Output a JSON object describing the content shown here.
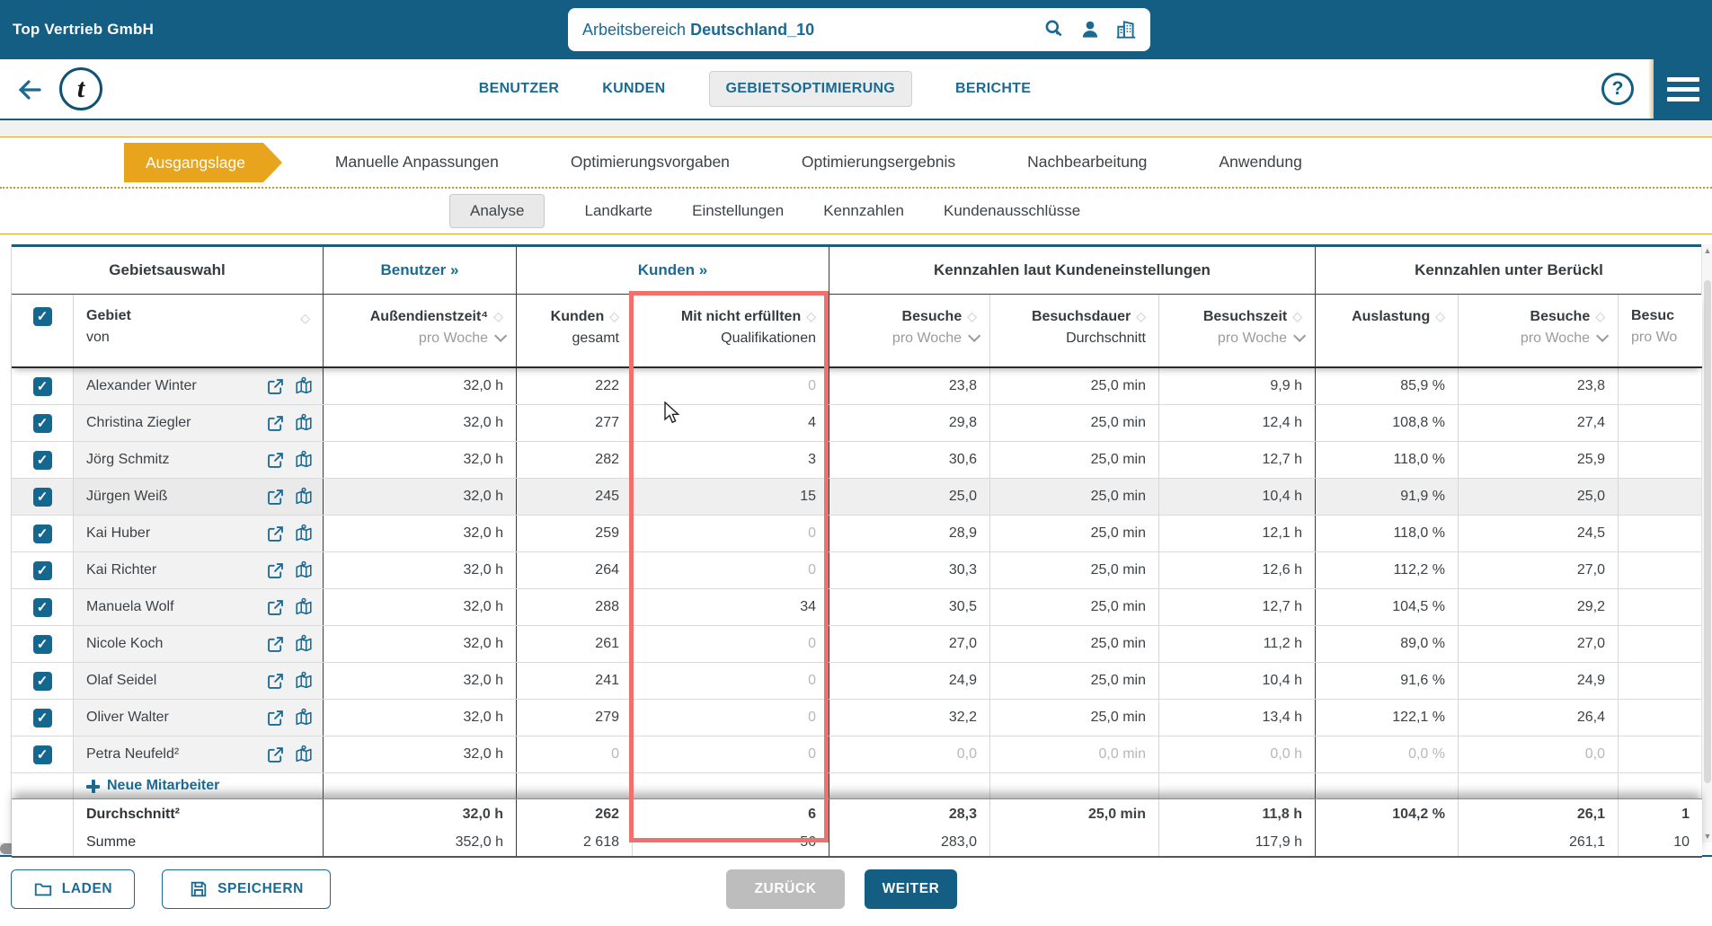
{
  "topbar": {
    "company": "Top Vertrieb GmbH",
    "workspace_label": "Arbeitsbereich",
    "workspace_name": "Deutschland_10",
    "icons": [
      "search-icon",
      "user-icon",
      "buildings-icon"
    ]
  },
  "nav": {
    "tabs": [
      {
        "label": "BENUTZER",
        "active": false
      },
      {
        "label": "KUNDEN",
        "active": false
      },
      {
        "label": "GEBIETSOPTIMIERUNG",
        "active": true
      },
      {
        "label": "BERICHTE",
        "active": false
      }
    ],
    "help_glyph": "?"
  },
  "wizard": {
    "steps": [
      {
        "label": "Ausgangslage",
        "active": true
      },
      {
        "label": "Manuelle Anpassungen",
        "active": false
      },
      {
        "label": "Optimierungsvorgaben",
        "active": false
      },
      {
        "label": "Optimierungsergebnis",
        "active": false
      },
      {
        "label": "Nachbearbeitung",
        "active": false
      },
      {
        "label": "Anwendung",
        "active": false
      }
    ]
  },
  "subtabs": [
    {
      "label": "Analyse",
      "active": true
    },
    {
      "label": "Landkarte",
      "active": false
    },
    {
      "label": "Einstellungen",
      "active": false
    },
    {
      "label": "Kennzahlen",
      "active": false
    },
    {
      "label": "Kundenausschlüsse",
      "active": false
    }
  ],
  "table": {
    "groups": [
      {
        "label": "Gebietsauswahl",
        "link": false
      },
      {
        "label": "Benutzer »",
        "link": true
      },
      {
        "label": "Kunden »",
        "link": true
      },
      {
        "label": "Kennzahlen laut Kundeneinstellungen",
        "link": false
      },
      {
        "label": "Kennzahlen unter Berückl",
        "link": false
      }
    ],
    "columns": [
      {
        "title": "Gebiet",
        "subtitle": "von"
      },
      {
        "title": "Außendienstzeit⁴",
        "subtitle": "pro Woche"
      },
      {
        "title": "Kunden",
        "subtitle": "gesamt"
      },
      {
        "title": "Mit nicht erfüllten",
        "subtitle": "Qualifikationen"
      },
      {
        "title": "Besuche",
        "subtitle": "pro Woche"
      },
      {
        "title": "Besuchsdauer",
        "subtitle": "Durchschnitt"
      },
      {
        "title": "Besuchszeit",
        "subtitle": "pro Woche"
      },
      {
        "title": "Auslastung",
        "subtitle": ""
      },
      {
        "title": "Besuche",
        "subtitle": "pro Woche"
      },
      {
        "title": "Besuc",
        "subtitle": "pro Wo"
      }
    ],
    "rows": [
      {
        "name": "Alexander Winter",
        "checked": true,
        "hover": false,
        "values": [
          "32,0 h",
          "222",
          "0",
          "23,8",
          "25,0 min",
          "9,9 h",
          "85,9 %",
          "23,8",
          ""
        ]
      },
      {
        "name": "Christina Ziegler",
        "checked": true,
        "hover": false,
        "values": [
          "32,0 h",
          "277",
          "4",
          "29,8",
          "25,0 min",
          "12,4 h",
          "108,8 %",
          "27,4",
          ""
        ]
      },
      {
        "name": "Jörg Schmitz",
        "checked": true,
        "hover": false,
        "values": [
          "32,0 h",
          "282",
          "3",
          "30,6",
          "25,0 min",
          "12,7 h",
          "118,0 %",
          "25,9",
          ""
        ]
      },
      {
        "name": "Jürgen Weiß",
        "checked": true,
        "hover": true,
        "values": [
          "32,0 h",
          "245",
          "15",
          "25,0",
          "25,0 min",
          "10,4 h",
          "91,9 %",
          "25,0",
          ""
        ]
      },
      {
        "name": "Kai Huber",
        "checked": true,
        "hover": false,
        "values": [
          "32,0 h",
          "259",
          "0",
          "28,9",
          "25,0 min",
          "12,1 h",
          "118,0 %",
          "24,5",
          ""
        ]
      },
      {
        "name": "Kai Richter",
        "checked": true,
        "hover": false,
        "values": [
          "32,0 h",
          "264",
          "0",
          "30,3",
          "25,0 min",
          "12,6 h",
          "112,2 %",
          "27,0",
          ""
        ]
      },
      {
        "name": "Manuela Wolf",
        "checked": true,
        "hover": false,
        "values": [
          "32,0 h",
          "288",
          "34",
          "30,5",
          "25,0 min",
          "12,7 h",
          "104,5 %",
          "29,2",
          ""
        ]
      },
      {
        "name": "Nicole Koch",
        "checked": true,
        "hover": false,
        "values": [
          "32,0 h",
          "261",
          "0",
          "27,0",
          "25,0 min",
          "11,2 h",
          "89,0 %",
          "27,0",
          ""
        ]
      },
      {
        "name": "Olaf Seidel",
        "checked": true,
        "hover": false,
        "values": [
          "32,0 h",
          "241",
          "0",
          "24,9",
          "25,0 min",
          "10,4 h",
          "91,6 %",
          "24,9",
          ""
        ]
      },
      {
        "name": "Oliver Walter",
        "checked": true,
        "hover": false,
        "values": [
          "32,0 h",
          "279",
          "0",
          "32,2",
          "25,0 min",
          "13,4 h",
          "122,1 %",
          "26,4",
          ""
        ]
      },
      {
        "name": "Petra Neufeld²",
        "checked": true,
        "hover": false,
        "values": [
          "32,0 h",
          "0",
          "0",
          "0,0",
          "0,0 min",
          "0,0 h",
          "0,0 %",
          "0,0",
          ""
        ]
      }
    ],
    "new_employee_label": "Neue Mitarbeiter",
    "summary": {
      "row1_label": "Durchschnitt²",
      "row1_values": [
        "32,0 h",
        "262",
        "6",
        "28,3",
        "25,0 min",
        "11,8 h",
        "104,2 %",
        "26,1",
        "1"
      ],
      "row2_label": "Summe",
      "row2_values": [
        "352,0 h",
        "2 618",
        "56",
        "283,0",
        "",
        "117,9 h",
        "",
        "261,1",
        "10"
      ]
    }
  },
  "footer": {
    "laden": "LADEN",
    "speichern": "SPEICHERN",
    "zurueck": "ZURÜCK",
    "weiter": "WEITER"
  },
  "colors": {
    "topbar_blue": "#135e82",
    "link_blue": "#1b6a94",
    "gold": "#e8a41d",
    "highlight_red": "#f0706e",
    "muted_gray": "#b8b8b8"
  }
}
